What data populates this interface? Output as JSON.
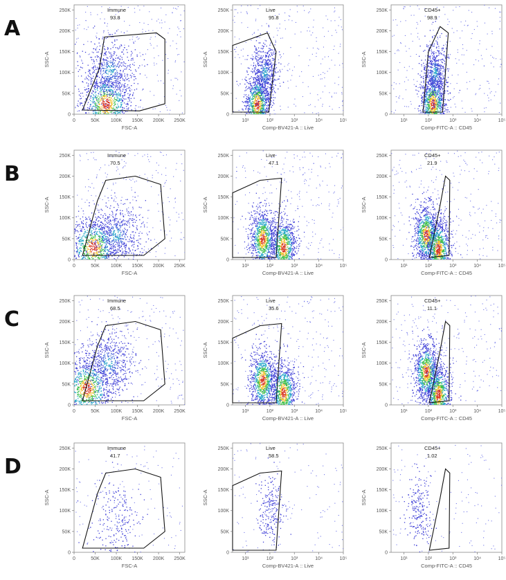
{
  "figure": {
    "rows": [
      {
        "label": "A",
        "plots": [
          {
            "gate": {
              "name": "Immune",
              "value": "93.8"
            },
            "xlabel": "FSC-A",
            "ylabel": "SSC-A",
            "xticks": [
              "0",
              "50K",
              "100K",
              "150K",
              "200K",
              "250K"
            ],
            "yticks": [
              "0",
              "50K",
              "100K",
              "150K",
              "200K",
              "250K"
            ]
          },
          {
            "gate": {
              "name": "Live",
              "value": "95.8"
            },
            "xlabel": "Comp-BV421-A :: Live",
            "ylabel": "SSC-A",
            "xticks": [
              "10¹",
              "10²",
              "10³",
              "10⁴",
              "10⁵"
            ],
            "yticks": [
              "0",
              "50K",
              "100K",
              "150K",
              "200K",
              "250K"
            ]
          },
          {
            "gate": {
              "name": "CD45+",
              "value": "98.9"
            },
            "xlabel": "Comp-FITC-A :: CD45",
            "ylabel": "SSC-A",
            "xticks": [
              "10¹",
              "10²",
              "10³",
              "10⁴",
              "10⁵"
            ],
            "yticks": [
              "0",
              "50K",
              "100K",
              "150K",
              "200K",
              "250K"
            ]
          }
        ]
      },
      {
        "label": "B",
        "plots": [
          {
            "gate": {
              "name": "Immune",
              "value": "70.5"
            },
            "xlabel": "FSC-A",
            "ylabel": "SSC-A",
            "xticks": [
              "0",
              "50K",
              "100K",
              "150K",
              "200K",
              "250K"
            ],
            "yticks": [
              "0",
              "50K",
              "100K",
              "150K",
              "200K",
              "250K"
            ]
          },
          {
            "gate": {
              "name": "Live",
              "value": "47.1"
            },
            "xlabel": "Comp-BV421-A :: Live",
            "ylabel": "SSC-A",
            "xticks": [
              "10¹",
              "10²",
              "10³",
              "10⁴",
              "10⁵"
            ],
            "yticks": [
              "0",
              "50K",
              "100K",
              "150K",
              "200K",
              "250K"
            ]
          },
          {
            "gate": {
              "name": "CD45+",
              "value": "21.9"
            },
            "xlabel": "Comp-FITC-A :: CD45",
            "ylabel": "SSC-A",
            "xticks": [
              "10¹",
              "10²",
              "10³",
              "10⁴",
              "10⁵"
            ],
            "yticks": [
              "0",
              "50K",
              "100K",
              "150K",
              "200K",
              "250K"
            ]
          }
        ]
      },
      {
        "label": "C",
        "plots": [
          {
            "gate": {
              "name": "Immune",
              "value": "68.5"
            },
            "xlabel": "FSC-A",
            "ylabel": "SSC-A",
            "xticks": [
              "0",
              "50K",
              "100K",
              "150K",
              "200K",
              "250K"
            ],
            "yticks": [
              "0",
              "50K",
              "100K",
              "150K",
              "200K",
              "250K"
            ]
          },
          {
            "gate": {
              "name": "Live",
              "value": "35.6"
            },
            "xlabel": "Comp-BV421-A :: Live",
            "ylabel": "SSC-A",
            "xticks": [
              "10¹",
              "10²",
              "10³",
              "10⁴",
              "10⁵"
            ],
            "yticks": [
              "0",
              "50K",
              "100K",
              "150K",
              "200K",
              "250K"
            ]
          },
          {
            "gate": {
              "name": "CD45+",
              "value": "11.1"
            },
            "xlabel": "Comp-FITC-A :: CD45",
            "ylabel": "SSC-A",
            "xticks": [
              "10¹",
              "10²",
              "10³",
              "10⁴",
              "10⁵"
            ],
            "yticks": [
              "0",
              "50K",
              "100K",
              "150K",
              "200K",
              "250K"
            ]
          }
        ]
      },
      {
        "label": "D",
        "plots": [
          {
            "gate": {
              "name": "Immune",
              "value": "41.7"
            },
            "xlabel": "FSC-A",
            "ylabel": "SSC-A",
            "xticks": [
              "0",
              "50K",
              "100K",
              "150K",
              "200K",
              "250K"
            ],
            "yticks": [
              "0",
              "50K",
              "100K",
              "150K",
              "200K",
              "250K"
            ]
          },
          {
            "gate": {
              "name": "Live",
              "value": "58.5"
            },
            "xlabel": "Comp-BV421-A :: Live",
            "ylabel": "SSC-A",
            "xticks": [
              "10¹",
              "10²",
              "10³",
              "10⁴",
              "10⁵"
            ],
            "yticks": [
              "0",
              "50K",
              "100K",
              "150K",
              "200K",
              "250K"
            ]
          },
          {
            "gate": {
              "name": "CD45+",
              "value": "1.02"
            },
            "xlabel": "Comp-FITC-A :: CD45",
            "ylabel": "SSC-A",
            "xticks": [
              "10¹",
              "10²",
              "10³",
              "10⁴",
              "10⁵"
            ],
            "yticks": [
              "0",
              "50K",
              "100K",
              "150K",
              "200K",
              "250K"
            ]
          }
        ]
      }
    ]
  },
  "chart_data": [
    {
      "type": "scatter",
      "panel": "A",
      "title": "Immune",
      "gate_percent": 93.8,
      "xlabel": "FSC-A",
      "ylabel": "SSC-A",
      "xlim": [
        0,
        262144
      ],
      "ylim": [
        0,
        262144
      ],
      "x_scale": "linear",
      "clusters": [
        {
          "x": 75000,
          "y": 25000,
          "density": "high"
        },
        {
          "x": 85000,
          "y": 105000,
          "density": "medium"
        }
      ],
      "gate_polygon": [
        [
          20000,
          10000
        ],
        [
          60000,
          110000
        ],
        [
          72000,
          185000
        ],
        [
          195000,
          195000
        ],
        [
          215000,
          180000
        ],
        [
          215000,
          25000
        ],
        [
          155000,
          8000
        ]
      ]
    },
    {
      "type": "scatter",
      "panel": "A",
      "title": "Live",
      "gate_percent": 95.8,
      "xlabel": "Comp-BV421-A :: Live",
      "ylabel": "SSC-A",
      "xlim": [
        3,
        100000
      ],
      "ylim": [
        0,
        262144
      ],
      "x_scale": "log",
      "clusters": [
        {
          "x": 30,
          "y": 25000,
          "density": "high"
        },
        {
          "x": 60,
          "y": 100000,
          "density": "medium"
        }
      ],
      "gate_polygon": [
        [
          3,
          5000
        ],
        [
          3,
          165000
        ],
        [
          80,
          195000
        ],
        [
          180,
          150000
        ],
        [
          90,
          5000
        ]
      ]
    },
    {
      "type": "scatter",
      "panel": "A",
      "title": "CD45+",
      "gate_percent": 98.9,
      "xlabel": "Comp-FITC-A :: CD45",
      "ylabel": "SSC-A",
      "xlim": [
        3,
        100000
      ],
      "ylim": [
        0,
        262144
      ],
      "x_scale": "log",
      "clusters": [
        {
          "x": 150,
          "y": 25000,
          "density": "high"
        },
        {
          "x": 180,
          "y": 100000,
          "density": "medium"
        }
      ],
      "gate_polygon": [
        [
          60,
          5000
        ],
        [
          100,
          150000
        ],
        [
          300,
          210000
        ],
        [
          650,
          195000
        ],
        [
          380,
          5000
        ]
      ]
    },
    {
      "type": "scatter",
      "panel": "B",
      "title": "Immune",
      "gate_percent": 70.5,
      "xlabel": "FSC-A",
      "ylabel": "SSC-A",
      "xlim": [
        0,
        262144
      ],
      "ylim": [
        0,
        262144
      ],
      "x_scale": "linear",
      "clusters": [
        {
          "x": 45000,
          "y": 30000,
          "density": "high"
        },
        {
          "x": 100000,
          "y": 60000,
          "density": "medium"
        }
      ],
      "gate_polygon": [
        [
          20000,
          10000
        ],
        [
          55000,
          140000
        ],
        [
          75000,
          190000
        ],
        [
          145000,
          200000
        ],
        [
          205000,
          180000
        ],
        [
          215000,
          50000
        ],
        [
          165000,
          10000
        ]
      ]
    },
    {
      "type": "scatter",
      "panel": "B",
      "title": "Live",
      "gate_percent": 47.1,
      "xlabel": "Comp-BV421-A :: Live",
      "ylabel": "SSC-A",
      "xlim": [
        3,
        100000
      ],
      "ylim": [
        0,
        262144
      ],
      "x_scale": "log",
      "clusters": [
        {
          "x": 50,
          "y": 50000,
          "density": "high"
        },
        {
          "x": 350,
          "y": 30000,
          "density": "high"
        }
      ],
      "gate_polygon": [
        [
          3,
          5000
        ],
        [
          3,
          160000
        ],
        [
          40,
          190000
        ],
        [
          300,
          195000
        ],
        [
          180,
          5000
        ]
      ]
    },
    {
      "type": "scatter",
      "panel": "B",
      "title": "CD45+",
      "gate_percent": 21.9,
      "xlabel": "Comp-FITC-A :: CD45",
      "ylabel": "SSC-A",
      "xlim": [
        3,
        100000
      ],
      "ylim": [
        0,
        262144
      ],
      "x_scale": "log",
      "clusters": [
        {
          "x": 80,
          "y": 60000,
          "density": "high"
        },
        {
          "x": 250,
          "y": 25000,
          "density": "high"
        }
      ],
      "gate_polygon": [
        [
          110,
          5000
        ],
        [
          300,
          130000
        ],
        [
          500,
          200000
        ],
        [
          750,
          190000
        ],
        [
          700,
          10000
        ]
      ]
    },
    {
      "type": "scatter",
      "panel": "C",
      "title": "Immune",
      "gate_percent": 68.5,
      "xlabel": "FSC-A",
      "ylabel": "SSC-A",
      "xlim": [
        0,
        262144
      ],
      "ylim": [
        0,
        262144
      ],
      "x_scale": "linear",
      "clusters": [
        {
          "x": 30000,
          "y": 40000,
          "density": "high"
        },
        {
          "x": 80000,
          "y": 100000,
          "density": "medium"
        }
      ],
      "gate_polygon": [
        [
          20000,
          10000
        ],
        [
          55000,
          140000
        ],
        [
          75000,
          190000
        ],
        [
          145000,
          200000
        ],
        [
          205000,
          180000
        ],
        [
          215000,
          50000
        ],
        [
          165000,
          10000
        ]
      ]
    },
    {
      "type": "scatter",
      "panel": "C",
      "title": "Live",
      "gate_percent": 35.6,
      "xlabel": "Comp-BV421-A :: Live",
      "ylabel": "SSC-A",
      "xlim": [
        3,
        100000
      ],
      "ylim": [
        0,
        262144
      ],
      "x_scale": "log",
      "clusters": [
        {
          "x": 50,
          "y": 60000,
          "density": "high"
        },
        {
          "x": 350,
          "y": 30000,
          "density": "high"
        }
      ],
      "gate_polygon": [
        [
          3,
          5000
        ],
        [
          3,
          160000
        ],
        [
          40,
          190000
        ],
        [
          300,
          195000
        ],
        [
          180,
          5000
        ]
      ]
    },
    {
      "type": "scatter",
      "panel": "C",
      "title": "CD45+",
      "gate_percent": 11.1,
      "xlabel": "Comp-FITC-A :: CD45",
      "ylabel": "SSC-A",
      "xlim": [
        3,
        100000
      ],
      "ylim": [
        0,
        262144
      ],
      "x_scale": "log",
      "clusters": [
        {
          "x": 80,
          "y": 80000,
          "density": "high"
        },
        {
          "x": 250,
          "y": 25000,
          "density": "high"
        }
      ],
      "gate_polygon": [
        [
          110,
          5000
        ],
        [
          300,
          130000
        ],
        [
          500,
          200000
        ],
        [
          750,
          190000
        ],
        [
          700,
          10000
        ]
      ]
    },
    {
      "type": "scatter",
      "panel": "D",
      "title": "Immune",
      "gate_percent": 41.7,
      "xlabel": "FSC-A",
      "ylabel": "SSC-A",
      "xlim": [
        0,
        262144
      ],
      "ylim": [
        0,
        262144
      ],
      "x_scale": "linear",
      "clusters": [
        {
          "x": 100000,
          "y": 80000,
          "density": "low"
        }
      ],
      "gate_polygon": [
        [
          20000,
          10000
        ],
        [
          55000,
          140000
        ],
        [
          75000,
          190000
        ],
        [
          145000,
          200000
        ],
        [
          205000,
          180000
        ],
        [
          215000,
          50000
        ],
        [
          165000,
          10000
        ]
      ]
    },
    {
      "type": "scatter",
      "panel": "D",
      "title": "Live",
      "gate_percent": 58.5,
      "xlabel": "Comp-BV421-A :: Live",
      "ylabel": "SSC-A",
      "xlim": [
        3,
        100000
      ],
      "ylim": [
        0,
        262144
      ],
      "x_scale": "log",
      "clusters": [
        {
          "x": 100,
          "y": 100000,
          "density": "low"
        }
      ],
      "gate_polygon": [
        [
          3,
          5000
        ],
        [
          3,
          160000
        ],
        [
          40,
          190000
        ],
        [
          300,
          195000
        ],
        [
          180,
          5000
        ]
      ]
    },
    {
      "type": "scatter",
      "panel": "D",
      "title": "CD45+",
      "gate_percent": 1.02,
      "xlabel": "Comp-FITC-A :: CD45",
      "ylabel": "SSC-A",
      "xlim": [
        3,
        100000
      ],
      "ylim": [
        0,
        262144
      ],
      "x_scale": "log",
      "clusters": [
        {
          "x": 40,
          "y": 100000,
          "density": "low"
        }
      ],
      "gate_polygon": [
        [
          110,
          5000
        ],
        [
          300,
          130000
        ],
        [
          500,
          200000
        ],
        [
          750,
          190000
        ],
        [
          700,
          10000
        ]
      ]
    }
  ]
}
